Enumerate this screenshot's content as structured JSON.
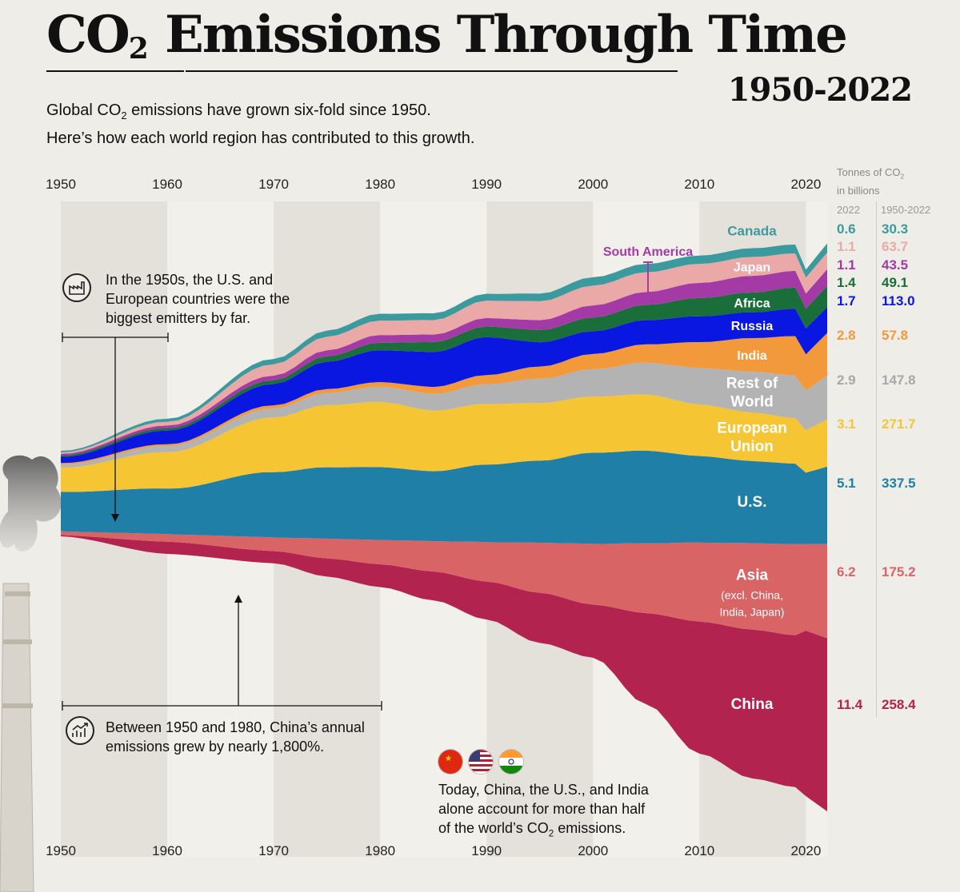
{
  "header": {
    "title_main": "CO",
    "title_sub": "2",
    "title_rest": " Emissions Through Time",
    "years": "1950-2022",
    "subtitle_line1_a": "Global CO",
    "subtitle_line1_sub": "2",
    "subtitle_line1_b": " emissions have grown six-fold since 1950.",
    "subtitle_line2": "Here’s how each world region has contributed to this growth."
  },
  "units": {
    "line1_a": "Tonnes of CO",
    "line1_sub": "2",
    "line2": "in billions"
  },
  "columns": {
    "c2022": "2022",
    "ccum": "1950-2022"
  },
  "notes": {
    "n1950s": [
      "In the 1950s, the U.S. and",
      "European countries were the",
      "biggest emitters by far."
    ],
    "china_growth": [
      "Between 1950 and 1980, China’s annual",
      "emissions grew by nearly 1,800%."
    ],
    "today": [
      "Today, China, the U.S., and India",
      "alone account for more than half",
      "of the world’s CO",
      "2",
      " emissions."
    ]
  },
  "icons": [
    "factory-icon",
    "growth-chart-icon",
    "china-flag-icon",
    "us-flag-icon",
    "india-flag-icon"
  ],
  "chart_data": {
    "type": "area",
    "stacked": true,
    "x_ticks": [
      "1950",
      "1960",
      "1970",
      "1980",
      "1990",
      "2000",
      "2010",
      "2020"
    ],
    "x_range": [
      1950,
      2022
    ],
    "keyframe_years": [
      1950,
      1960,
      1970,
      1975,
      1980,
      1985,
      1990,
      1995,
      2000,
      2005,
      2010,
      2015,
      2019,
      2020,
      2022
    ],
    "series": [
      {
        "name": "China",
        "v2022": "11.4",
        "cum": "258.4",
        "color": "#b32350",
        "values": [
          0.08,
          0.8,
          0.8,
          1.2,
          1.5,
          1.9,
          2.5,
          3.3,
          3.5,
          6.0,
          8.7,
          9.8,
          10.0,
          10.9,
          11.4
        ]
      },
      {
        "name": "Asia",
        "sublabel": [
          "(excl. China,",
          "India, Japan)"
        ],
        "v2022": "6.2",
        "cum": "175.2",
        "color": "#d96466",
        "values": [
          0.25,
          0.5,
          0.9,
          1.3,
          1.6,
          2.0,
          2.6,
          3.3,
          4.0,
          4.6,
          5.2,
          5.7,
          6.0,
          5.7,
          6.2
        ]
      },
      {
        "name": "U.S.",
        "v2022": "5.1",
        "cum": "337.5",
        "color": "#1f7fa6",
        "values": [
          2.6,
          3.0,
          4.3,
          4.7,
          4.8,
          4.6,
          5.1,
          5.4,
          6.0,
          6.1,
          5.7,
          5.4,
          5.3,
          4.7,
          5.1
        ]
      },
      {
        "name": "European Union",
        "v2022": "3.1",
        "cum": "271.7",
        "color": "#f5c533",
        "values": [
          1.6,
          2.4,
          3.6,
          4.1,
          4.3,
          4.0,
          4.0,
          3.8,
          3.7,
          3.7,
          3.4,
          3.2,
          3.0,
          2.8,
          3.1
        ]
      },
      {
        "name": "Rest of World",
        "v2022": "2.9",
        "cum": "147.8",
        "color": "#b3b3b3",
        "values": [
          0.2,
          0.4,
          0.6,
          0.8,
          1.0,
          1.1,
          1.3,
          1.6,
          1.8,
          2.1,
          2.4,
          2.7,
          2.8,
          2.6,
          2.9
        ]
      },
      {
        "name": "India",
        "v2022": "2.8",
        "cum": "57.8",
        "color": "#f29a3b",
        "values": [
          0.1,
          0.12,
          0.2,
          0.25,
          0.3,
          0.45,
          0.6,
          0.8,
          1.0,
          1.2,
          1.7,
          2.2,
          2.6,
          2.4,
          2.8
        ]
      },
      {
        "name": "Russia",
        "v2022": "1.7",
        "cum": "113.0",
        "color": "#0a17e0",
        "values": [
          0.4,
          0.9,
          1.4,
          1.8,
          2.1,
          2.3,
          2.5,
          1.6,
          1.5,
          1.6,
          1.7,
          1.7,
          1.8,
          1.7,
          1.7
        ]
      },
      {
        "name": "Africa",
        "v2022": "1.4",
        "cum": "49.1",
        "color": "#1a6e3a",
        "values": [
          0.1,
          0.15,
          0.25,
          0.35,
          0.5,
          0.65,
          0.7,
          0.8,
          0.9,
          1.0,
          1.2,
          1.3,
          1.4,
          1.3,
          1.4
        ]
      },
      {
        "name": "South America",
        "v2022": "1.1",
        "cum": "43.5",
        "color": "#a43aa5",
        "values": [
          0.1,
          0.18,
          0.3,
          0.4,
          0.5,
          0.5,
          0.55,
          0.65,
          0.8,
          0.85,
          1.0,
          1.1,
          1.1,
          1.0,
          1.1
        ]
      },
      {
        "name": "Japan",
        "v2022": "1.1",
        "cum": "63.7",
        "color": "#eaa9a7",
        "values": [
          0.1,
          0.25,
          0.75,
          0.9,
          0.95,
          0.95,
          1.15,
          1.25,
          1.3,
          1.3,
          1.25,
          1.25,
          1.15,
          1.05,
          1.1
        ]
      },
      {
        "name": "Canada",
        "v2022": "0.6",
        "cum": "30.3",
        "color": "#3b9a9e",
        "values": [
          0.1,
          0.2,
          0.35,
          0.4,
          0.45,
          0.45,
          0.45,
          0.5,
          0.55,
          0.55,
          0.55,
          0.57,
          0.58,
          0.53,
          0.6
        ]
      }
    ]
  }
}
